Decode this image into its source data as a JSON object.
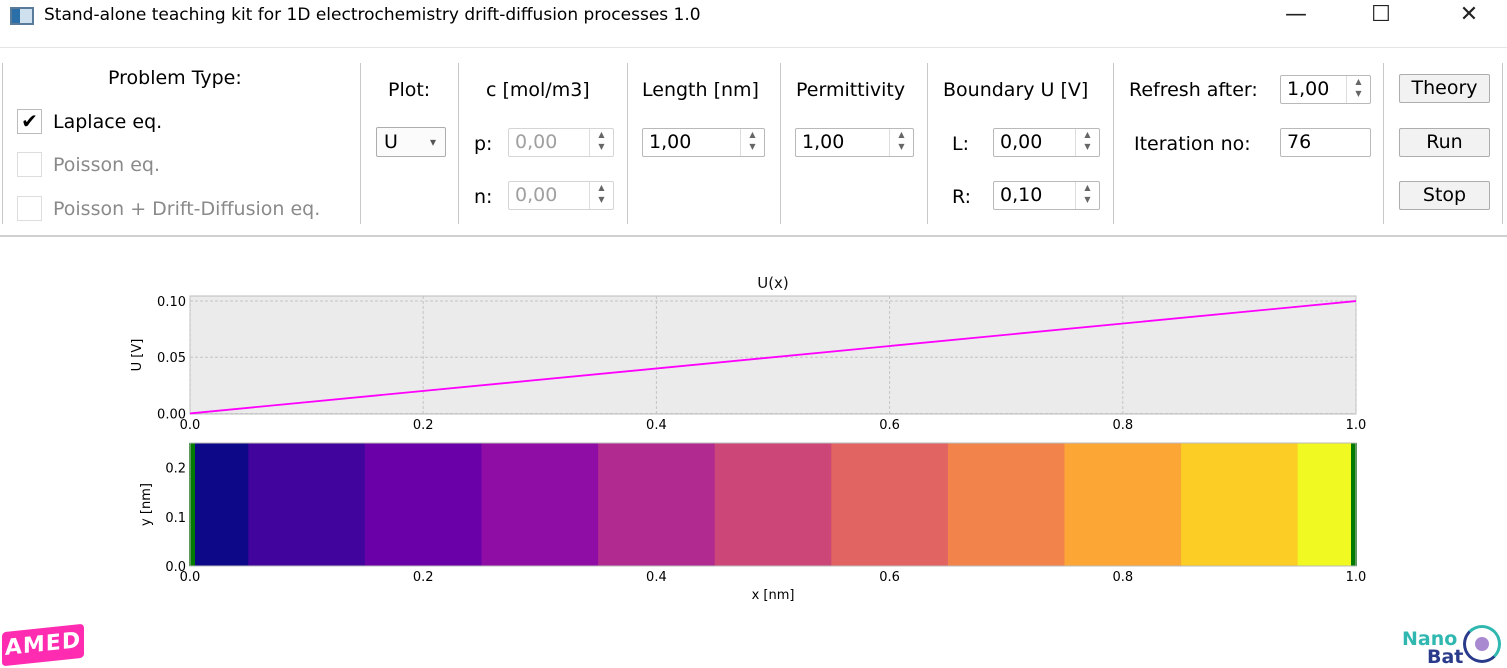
{
  "window": {
    "title": "Stand-alone teaching kit for 1D electrochemistry drift-diffusion processes 1.0",
    "minimize": "—",
    "maximize": "☐",
    "close": "✕"
  },
  "problem_type": {
    "label": "Problem Type:",
    "options": [
      {
        "label": "Laplace eq.",
        "checked": true,
        "enabled": true
      },
      {
        "label": "Poisson eq.",
        "checked": false,
        "enabled": false
      },
      {
        "label": "Poisson + Drift-Diffusion eq.",
        "checked": false,
        "enabled": false
      }
    ],
    "check_mark": "✔"
  },
  "plot": {
    "label": "Plot:",
    "value": "U",
    "arrow": "▾"
  },
  "concentration": {
    "label": "c [mol/m3]",
    "p_label": "p:",
    "p_value": "0,00",
    "n_label": "n:",
    "n_value": "0,00"
  },
  "length": {
    "label": "Length [nm]",
    "value": "1,00"
  },
  "permittivity": {
    "label": "Permittivity",
    "value": "1,00"
  },
  "boundary": {
    "label": "Boundary U [V]",
    "l_label": "L:",
    "l_value": "0,00",
    "r_label": "R:",
    "r_value": "0,10"
  },
  "refresh": {
    "label": "Refresh after:",
    "value": "1,00"
  },
  "iteration": {
    "label": "Iteration no:",
    "value": "76"
  },
  "buttons": {
    "theory": "Theory",
    "run": "Run",
    "stop": "Stop"
  },
  "spin_arrows": "▲\n▼",
  "logos": {
    "left": "AMED",
    "right_line1": "Nano",
    "right_line2": "Bat"
  },
  "chart_data": [
    {
      "type": "line",
      "title": "U(x)",
      "xlabel": "",
      "ylabel": "U [V]",
      "xlim": [
        0,
        1
      ],
      "ylim": [
        -0.0005,
        0.1045
      ],
      "xticks": [
        "0.0",
        "0.2",
        "0.4",
        "0.6",
        "0.8",
        "1.0"
      ],
      "yticks": [
        "0.00",
        "0.05",
        "0.10"
      ],
      "grid": true,
      "series": [
        {
          "name": "U",
          "color": "#ff00ff",
          "x": [
            0,
            1
          ],
          "y": [
            0,
            0.1
          ]
        }
      ]
    },
    {
      "type": "heatmap",
      "xlabel": "x [nm]",
      "ylabel": "y [nm]",
      "xlim": [
        0,
        1
      ],
      "ylim": [
        0,
        0.25
      ],
      "xticks": [
        "0.0",
        "0.2",
        "0.4",
        "0.6",
        "0.8",
        "1.0"
      ],
      "yticks": [
        "0.0",
        "0.1",
        "0.2"
      ],
      "cells": [
        {
          "x0": 0,
          "x1": 0.05,
          "value": 0.0
        },
        {
          "x0": 0.05,
          "x1": 0.15,
          "value": 0.01
        },
        {
          "x0": 0.15,
          "x1": 0.25,
          "value": 0.02
        },
        {
          "x0": 0.25,
          "x1": 0.35,
          "value": 0.03
        },
        {
          "x0": 0.35,
          "x1": 0.45,
          "value": 0.04
        },
        {
          "x0": 0.45,
          "x1": 0.55,
          "value": 0.05
        },
        {
          "x0": 0.55,
          "x1": 0.65,
          "value": 0.06
        },
        {
          "x0": 0.65,
          "x1": 0.75,
          "value": 0.07
        },
        {
          "x0": 0.75,
          "x1": 0.85,
          "value": 0.08
        },
        {
          "x0": 0.85,
          "x1": 0.95,
          "value": 0.09
        },
        {
          "x0": 0.95,
          "x1": 1.0,
          "value": 0.1
        }
      ],
      "colors": [
        "#0d0887",
        "#41049d",
        "#6a00a8",
        "#8f0da4",
        "#b12a90",
        "#cc4778",
        "#e16462",
        "#f2844b",
        "#fca636",
        "#fcce25",
        "#f0f921"
      ],
      "electrode_color": "#007a00"
    }
  ]
}
